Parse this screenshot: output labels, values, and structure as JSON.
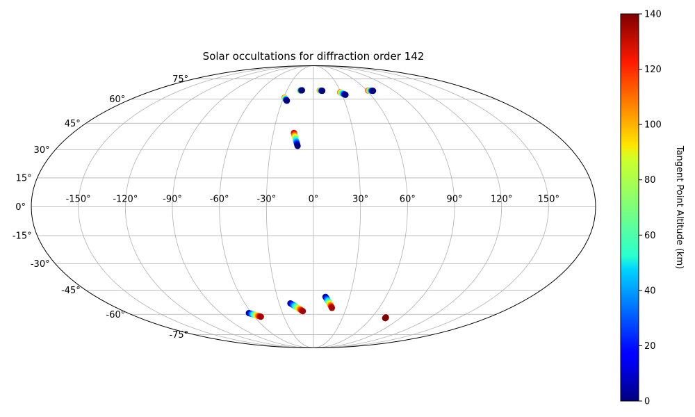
{
  "chart_data": {
    "type": "scatter",
    "projection": "mollweide",
    "title": "Solar occultations for diffraction order 142",
    "grid": true,
    "longitude_ticks": [
      -150,
      -120,
      -90,
      -60,
      -30,
      0,
      30,
      60,
      90,
      120,
      150
    ],
    "longitude_tick_labels": [
      "-150°",
      "-120°",
      "-90°",
      "-60°",
      "-30°",
      "0°",
      "30°",
      "60°",
      "90°",
      "120°",
      "150°"
    ],
    "latitude_ticks": [
      75,
      60,
      45,
      30,
      15,
      0,
      -15,
      -30,
      -45,
      -60,
      -75
    ],
    "latitude_tick_labels": [
      "75°",
      "60°",
      "45°",
      "30°",
      "15°",
      "0°",
      "-15°",
      "-30°",
      "-45°",
      "-60°",
      "-75°"
    ],
    "colorbar": {
      "label": "Tangent Point Altitude (km)",
      "colormap": "jet",
      "range": [
        0,
        140
      ],
      "ticks": [
        0,
        20,
        40,
        60,
        80,
        100,
        120,
        140
      ],
      "tick_labels": [
        "0",
        "20",
        "40",
        "60",
        "80",
        "100",
        "120",
        "140"
      ]
    },
    "occultations": [
      {
        "lon_start": -29.1,
        "lat_start": 61.0,
        "lon_end": -25.7,
        "lat_end": 59.0,
        "alt_start": 110,
        "alt_end": 0
      },
      {
        "lon_start": -15.2,
        "lat_start": 66.0,
        "lon_end": -13.0,
        "lat_end": 66.2,
        "alt_start": 100,
        "alt_end": 0
      },
      {
        "lon_start": 7.1,
        "lat_start": 66.1,
        "lon_end": 9.9,
        "lat_end": 65.8,
        "alt_start": 110,
        "alt_end": 0
      },
      {
        "lon_start": 29.1,
        "lat_start": 64.7,
        "lon_end": 33.6,
        "lat_end": 63.0,
        "alt_start": 110,
        "alt_end": 0
      },
      {
        "lon_start": 61.6,
        "lat_start": 66.0,
        "lon_end": 66.7,
        "lat_end": 65.8,
        "alt_start": 120,
        "alt_end": 0
      },
      {
        "lon_start": -14.6,
        "lat_start": 39.4,
        "lon_end": -11.2,
        "lat_end": 32.1,
        "alt_start": 130,
        "alt_end": 0
      },
      {
        "lon_start": -62.7,
        "lat_start": -59.2,
        "lon_end": -53.5,
        "lat_end": -61.6,
        "alt_start": 0,
        "alt_end": 135
      },
      {
        "lon_start": -20.2,
        "lat_start": -52.9,
        "lon_end": -10.1,
        "lat_end": -57.9,
        "alt_start": 0,
        "alt_end": 135
      },
      {
        "lon_start": 10.0,
        "lat_start": -48.9,
        "lon_end": 16.9,
        "lat_end": -55.8,
        "alt_start": 0,
        "alt_end": 135
      },
      {
        "lon_start": 74.5,
        "lat_start": -62.1,
        "lon_end": 74.6,
        "lat_end": -62.6,
        "alt_start": 140,
        "alt_end": 140
      }
    ]
  }
}
